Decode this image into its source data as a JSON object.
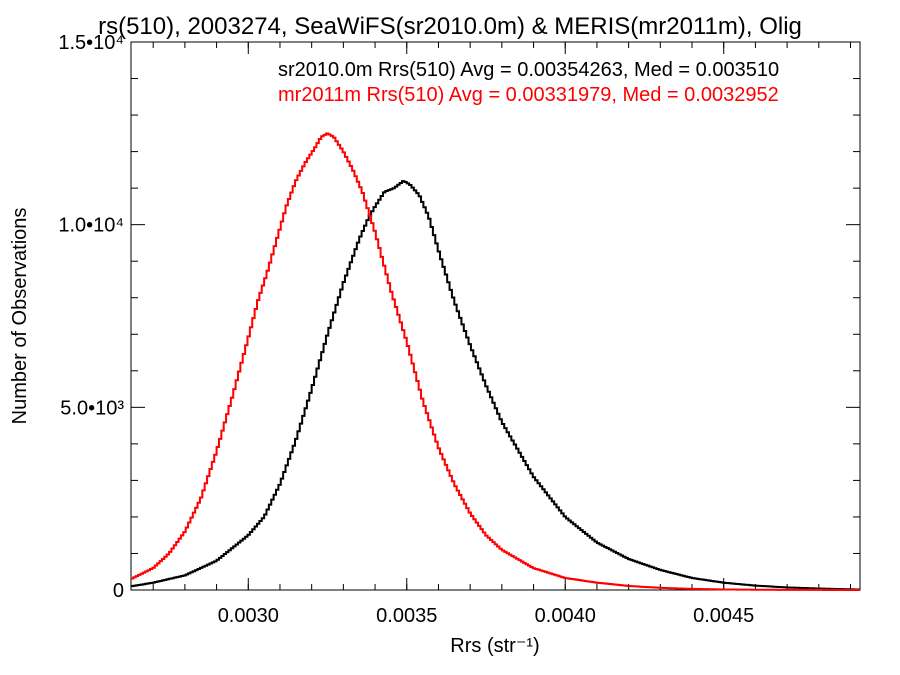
{
  "chart_data": {
    "type": "line",
    "title": "rs(510), 2003274, SeaWiFS(sr2010.0m) & MERIS(mr2011m), Olig",
    "xlabel": "Rrs (str⁻¹)",
    "ylabel": "Number of Observations",
    "xlim": [
      0.00263,
      0.00493
    ],
    "ylim": [
      0,
      15000
    ],
    "x_ticks": [
      {
        "value": 0.003,
        "label": "0.0030"
      },
      {
        "value": 0.0035,
        "label": "0.0035"
      },
      {
        "value": 0.004,
        "label": "0.0040"
      },
      {
        "value": 0.0045,
        "label": "0.0045"
      }
    ],
    "y_ticks": [
      {
        "value": 0,
        "label": "0"
      },
      {
        "value": 5000,
        "label": "5.0•10³"
      },
      {
        "value": 10000,
        "label": "1.0•10⁴"
      },
      {
        "value": 15000,
        "label": "1.5•10⁴"
      }
    ],
    "legend_position": "top-right",
    "annotations": [
      {
        "text": "sr2010.0m Rrs(510) Avg = 0.00354263, Med = 0.003510",
        "color": "#000000"
      },
      {
        "text": "mr2011m Rrs(510) Avg = 0.00331979, Med = 0.0032952",
        "color": "#ff0000"
      }
    ],
    "series": [
      {
        "color": "#000000",
        "x": [
          0.00263,
          0.0027,
          0.0028,
          0.0029,
          0.003,
          0.00305,
          0.0031,
          0.00315,
          0.0032,
          0.00325,
          0.0033,
          0.00335,
          0.00338,
          0.0034,
          0.00343,
          0.00346,
          0.00349,
          0.00351,
          0.00354,
          0.00357,
          0.0036,
          0.00365,
          0.0037,
          0.00375,
          0.0038,
          0.0039,
          0.004,
          0.0041,
          0.0042,
          0.0043,
          0.0044,
          0.0045,
          0.0046,
          0.0047,
          0.0048,
          0.00493
        ],
        "values": [
          100,
          200,
          400,
          800,
          1500,
          2000,
          2900,
          4100,
          5500,
          7000,
          8400,
          9600,
          10200,
          10500,
          10900,
          11000,
          11200,
          11100,
          10800,
          10200,
          9300,
          7900,
          6700,
          5600,
          4600,
          3100,
          2000,
          1300,
          850,
          550,
          330,
          200,
          120,
          70,
          40,
          10
        ]
      },
      {
        "color": "#ff0000",
        "x": [
          0.00263,
          0.0027,
          0.00275,
          0.0028,
          0.00285,
          0.0029,
          0.00295,
          0.003,
          0.00303,
          0.00306,
          0.00309,
          0.00312,
          0.00315,
          0.00318,
          0.00321,
          0.00323,
          0.00325,
          0.00327,
          0.0033,
          0.00333,
          0.00336,
          0.0034,
          0.00345,
          0.0035,
          0.00355,
          0.0036,
          0.00365,
          0.0037,
          0.00375,
          0.0038,
          0.0039,
          0.004,
          0.0041,
          0.0042,
          0.0043,
          0.0044,
          0.0045,
          0.0046,
          0.0047,
          0.0048,
          0.00493
        ],
        "values": [
          300,
          600,
          1000,
          1600,
          2500,
          3800,
          5300,
          6900,
          7900,
          8700,
          9600,
          10500,
          11200,
          11700,
          12100,
          12400,
          12500,
          12400,
          12000,
          11500,
          10900,
          9800,
          8200,
          6800,
          5200,
          3900,
          2900,
          2100,
          1500,
          1100,
          600,
          330,
          200,
          110,
          60,
          30,
          15,
          8,
          4,
          2,
          0
        ]
      }
    ]
  }
}
